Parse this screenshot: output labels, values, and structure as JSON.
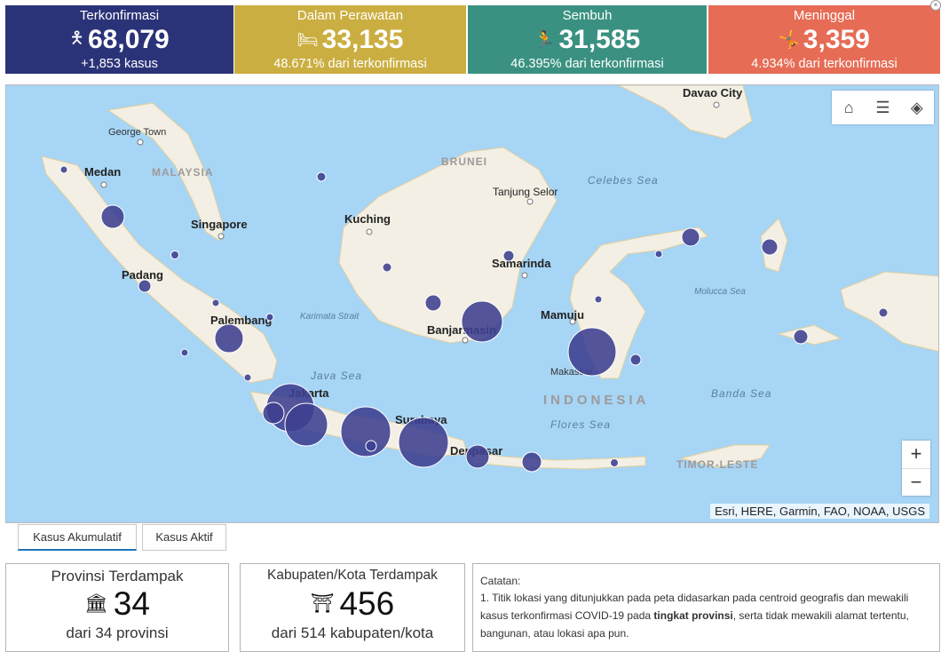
{
  "stats": {
    "confirmed": {
      "label": "Terkonfirmasi",
      "value": "68,079",
      "sub": "+1,853 kasus",
      "icon": "confirmed-person-icon",
      "color": "#2b3378"
    },
    "care": {
      "label": "Dalam Perawatan",
      "value": "33,135",
      "sub": "48.671% dari terkonfirmasi",
      "icon": "hospital-bed-icon",
      "color": "#cbae41"
    },
    "recovered": {
      "label": "Sembuh",
      "value": "31,585",
      "sub": "46.395% dari terkonfirmasi",
      "icon": "recovered-person-icon",
      "color": "#3a9181"
    },
    "death": {
      "label": "Meninggal",
      "value": "3,359",
      "sub": "4.934% dari terkonfirmasi",
      "icon": "falling-person-icon",
      "color": "#e66c55"
    }
  },
  "map": {
    "labels": {
      "davao": "Davao City",
      "georgetown": "George Town",
      "medan": "Medan",
      "malaysia": "MALAYSIA",
      "brunei": "BRUNEI",
      "celebes": "Celebes Sea",
      "tanjung": "Tanjung Selor",
      "kuching": "Kuching",
      "singapore": "Singapore",
      "samarinda": "Samarinda",
      "padang": "Padang",
      "molucca": "Molucca Sea",
      "karimata": "Karimata Strait",
      "palembang": "Palembang",
      "mamuju": "Mamuju",
      "banjarmasin": "Banjarmasin",
      "makassar": "Makassar",
      "java_sea": "Java Sea",
      "jakarta": "Jakarta",
      "indonesia": "INDONESIA",
      "banda": "Banda Sea",
      "flores": "Flores Sea",
      "surabaya": "Surabaya",
      "denpasar": "Denpasar",
      "timor": "TIMOR-LESTE"
    },
    "attribution": "Esri, HERE, Garmin, FAO, NOAA, USGS",
    "toolbar_icons": [
      "home-icon",
      "legend-list-icon",
      "layers-icon"
    ],
    "zoom_in": "+",
    "zoom_out": "−",
    "marker_color": "#3d3f8f"
  },
  "tabs": {
    "cumulative": "Kasus Akumulatif",
    "active": "Kasus Aktif"
  },
  "cards": {
    "provinces": {
      "title": "Provinsi Terdampak",
      "value": "34",
      "sub": "dari 34 provinsi",
      "icon": "building-icon"
    },
    "regencies": {
      "title": "Kabupaten/Kota Terdampak",
      "value": "456",
      "sub": "dari 514 kabupaten/kota",
      "icon": "monument-icon"
    }
  },
  "notes": {
    "title": "Catatan:",
    "text_before": "1. Titik lokasi yang ditunjukkan pada peta didasarkan pada centroid geografis dan mewakili kasus terkonfirmasi COVID-19 pada ",
    "text_bold": "tingkat provinsi",
    "text_after": ", serta tidak mewakili alamat tertentu, bangunan, atau lokasi apa pun."
  }
}
